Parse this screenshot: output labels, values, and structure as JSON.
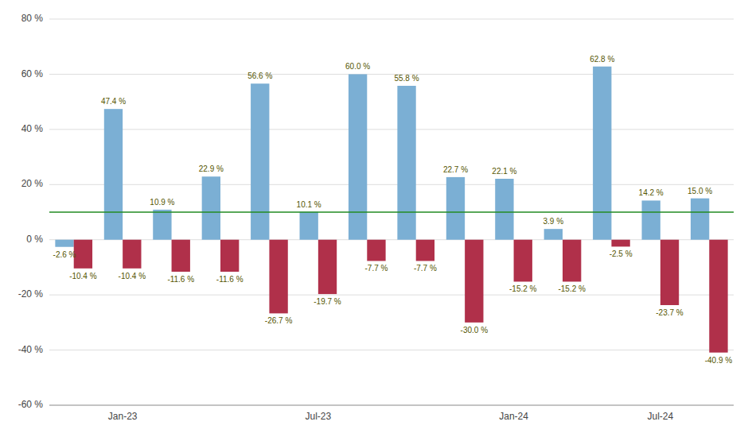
{
  "chart_data": {
    "type": "bar",
    "categories": [
      null,
      "Jan-23",
      null,
      null,
      null,
      "Jul-23",
      null,
      null,
      null,
      "Jan-24",
      null,
      null,
      "Jul-24",
      null
    ],
    "series": [
      {
        "color": "#7bafd4",
        "values": [
          -2.6,
          47.4,
          10.9,
          22.9,
          56.6,
          10.1,
          60.0,
          55.8,
          22.7,
          22.1,
          3.9,
          62.8,
          14.2,
          15.0
        ],
        "value_labels": [
          "-2.6 %",
          "47.4 %",
          "10.9 %",
          "22.9 %",
          "56.6 %",
          "10.1 %",
          "60.0 %",
          "55.8 %",
          "22.7 %",
          "22.1 %",
          "3.9 %",
          "62.8 %",
          "14.2 %",
          "15.0 %"
        ]
      },
      {
        "color": "#b0304a",
        "values": [
          -10.4,
          -10.4,
          -11.6,
          -11.6,
          -26.7,
          -19.7,
          -7.7,
          -7.7,
          -30.0,
          -15.2,
          -15.2,
          -2.5,
          -23.7,
          -40.9
        ],
        "value_labels": [
          "-10.4 %",
          "-10.4 %",
          "-11.6 %",
          "-11.6 %",
          "-26.7 %",
          "-19.7 %",
          "-7.7 %",
          "-7.7 %",
          "-30.0 %",
          "-15.2 %",
          "-15.2 %",
          "-2.5 %",
          "-23.7 %",
          "-40.9 %"
        ]
      }
    ],
    "ylim": [
      -60,
      80
    ],
    "yticks": [
      {
        "value": -60,
        "label": "-60 %"
      },
      {
        "value": -40,
        "label": "-40 %"
      },
      {
        "value": -20,
        "label": "-20 %"
      },
      {
        "value": 0,
        "label": "0 %"
      },
      {
        "value": 20,
        "label": "20 %"
      },
      {
        "value": 40,
        "label": "40 %"
      },
      {
        "value": 60,
        "label": "60 %"
      },
      {
        "value": 80,
        "label": "80 %"
      }
    ],
    "reference_line": {
      "value": 10,
      "color": "#228B22"
    },
    "grid": true,
    "data_labels": true
  }
}
